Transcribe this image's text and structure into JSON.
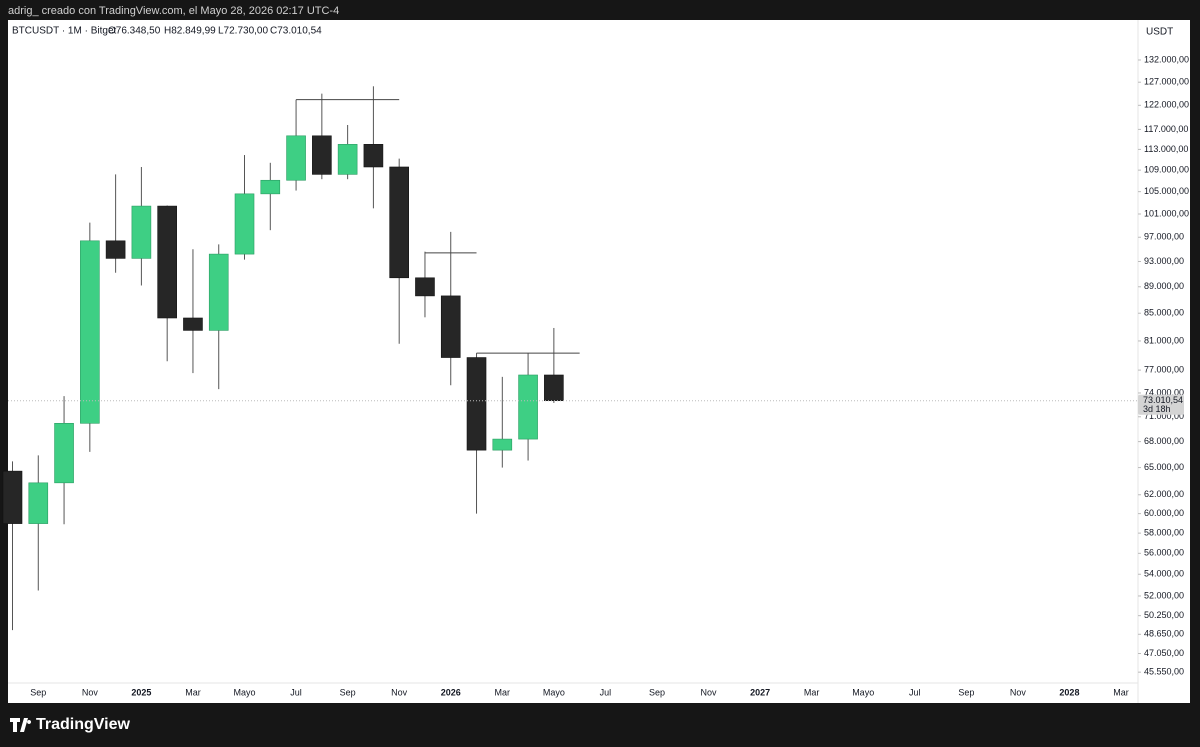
{
  "attribution": "adrig_ creado con TradingView.com, el Mayo 28, 2026 02:17 UTC-4",
  "logo": "TradingView",
  "legend": {
    "symbol": "BTCUSDT · 1M · Bitget",
    "open": "O76.348,50",
    "high": "H82.849,99",
    "low": "L72.730,00",
    "close": "C73.010,54"
  },
  "chart_data": {
    "type": "candlestick",
    "currency": "USDT",
    "x": [
      "2024-08",
      "2024-09",
      "2024-10",
      "2024-11",
      "2024-12",
      "2025-01",
      "2025-02",
      "2025-03",
      "2025-04",
      "2025-05",
      "2025-06",
      "2025-07",
      "2025-08",
      "2025-09",
      "2025-10",
      "2025-11",
      "2025-12",
      "2026-01",
      "2026-02",
      "2026-03",
      "2026-04",
      "2026-05"
    ],
    "open": [
      64600,
      58970,
      63300,
      70200,
      96400,
      93500,
      102400,
      84300,
      82500,
      94200,
      104600,
      107100,
      115700,
      108200,
      114000,
      109600,
      90400,
      87600,
      78700,
      67000,
      68300,
      76348.5
    ],
    "high": [
      65700,
      66400,
      73600,
      99500,
      108200,
      109600,
      102500,
      95000,
      95800,
      111900,
      110400,
      123200,
      124500,
      117900,
      126100,
      111200,
      94600,
      97900,
      79300,
      76100,
      79300,
      82849.99
    ],
    "low": [
      49000,
      52500,
      58900,
      66800,
      91200,
      89200,
      78200,
      76600,
      74500,
      93300,
      98200,
      105200,
      107300,
      107300,
      102000,
      80600,
      84400,
      75000,
      60000,
      65000,
      65800,
      72730
    ],
    "close": [
      58970,
      63300,
      70200,
      96400,
      93500,
      102400,
      84300,
      82500,
      94200,
      104600,
      107100,
      115700,
      108200,
      114000,
      109600,
      90400,
      87600,
      78700,
      67000,
      68300,
      76348.5,
      73010.54
    ],
    "up_color": "#3ecf84",
    "down_color": "#262626",
    "last_price": {
      "value": 73010.54,
      "label": "73.010,54",
      "countdown": "3d 18h"
    },
    "levels": [
      {
        "value": 123200,
        "start": "2025-07",
        "end": "2025-11"
      },
      {
        "value": 94400,
        "start": "2025-12",
        "end": "2026-02"
      },
      {
        "value": 79300,
        "start": "2026-02",
        "end": "2026-06"
      }
    ],
    "log_scale": true,
    "xlim": [
      "2024-08",
      "2028-03"
    ],
    "ylim": [
      44700,
      141500
    ],
    "yticks": [
      {
        "value": 132000,
        "label": "132.000,00"
      },
      {
        "value": 127000,
        "label": "127.000,00"
      },
      {
        "value": 122000,
        "label": "122.000,00"
      },
      {
        "value": 117000,
        "label": "117.000,00"
      },
      {
        "value": 113000,
        "label": "113.000,00"
      },
      {
        "value": 109000,
        "label": "109.000,00"
      },
      {
        "value": 105000,
        "label": "105.000,00"
      },
      {
        "value": 101000,
        "label": "101.000,00"
      },
      {
        "value": 97000,
        "label": "97.000,00"
      },
      {
        "value": 93000,
        "label": "93.000,00"
      },
      {
        "value": 89000,
        "label": "89.000,00"
      },
      {
        "value": 85000,
        "label": "85.000,00"
      },
      {
        "value": 81000,
        "label": "81.000,00"
      },
      {
        "value": 77000,
        "label": "77.000,00"
      },
      {
        "value": 74000,
        "label": "74.000,00"
      },
      {
        "value": 71000,
        "label": "71.000,00"
      },
      {
        "value": 68000,
        "label": "68.000,00"
      },
      {
        "value": 65000,
        "label": "65.000,00"
      },
      {
        "value": 62000,
        "label": "62.000,00"
      },
      {
        "value": 60000,
        "label": "60.000,00"
      },
      {
        "value": 58000,
        "label": "58.000,00"
      },
      {
        "value": 56000,
        "label": "56.000,00"
      },
      {
        "value": 54000,
        "label": "54.000,00"
      },
      {
        "value": 52000,
        "label": "52.000,00"
      },
      {
        "value": 50250,
        "label": "50.250,00"
      },
      {
        "value": 48650,
        "label": "48.650,00"
      },
      {
        "value": 47050,
        "label": "47.050,00"
      },
      {
        "value": 45550,
        "label": "45.550,00"
      }
    ],
    "xticks": [
      {
        "value": "2024-09",
        "label": "Sep"
      },
      {
        "value": "2024-11",
        "label": "Nov"
      },
      {
        "value": "2025-01",
        "label": "2025"
      },
      {
        "value": "2025-03",
        "label": "Mar"
      },
      {
        "value": "2025-05",
        "label": "Mayo"
      },
      {
        "value": "2025-07",
        "label": "Jul"
      },
      {
        "value": "2025-09",
        "label": "Sep"
      },
      {
        "value": "2025-11",
        "label": "Nov"
      },
      {
        "value": "2026-01",
        "label": "2026"
      },
      {
        "value": "2026-03",
        "label": "Mar"
      },
      {
        "value": "2026-05",
        "label": "Mayo"
      },
      {
        "value": "2026-07",
        "label": "Jul"
      },
      {
        "value": "2026-09",
        "label": "Sep"
      },
      {
        "value": "2026-11",
        "label": "Nov"
      },
      {
        "value": "2027-01",
        "label": "2027"
      },
      {
        "value": "2027-03",
        "label": "Mar"
      },
      {
        "value": "2027-05",
        "label": "Mayo"
      },
      {
        "value": "2027-07",
        "label": "Jul"
      },
      {
        "value": "2027-09",
        "label": "Sep"
      },
      {
        "value": "2027-11",
        "label": "Nov"
      },
      {
        "value": "2028-01",
        "label": "2028"
      },
      {
        "value": "2028-03",
        "label": "Mar"
      }
    ]
  }
}
